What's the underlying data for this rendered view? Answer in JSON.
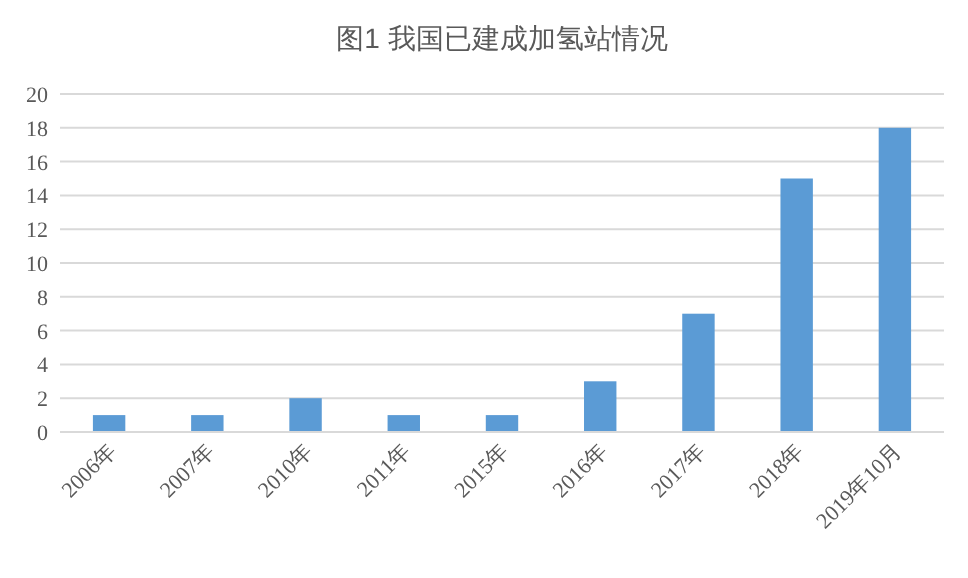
{
  "chart_data": {
    "type": "bar",
    "title": "图1 我国已建成加氢站情况",
    "categories": [
      "2006年",
      "2007年",
      "2010年",
      "2011年",
      "2015年",
      "2016年",
      "2017年",
      "2018年",
      "2019年10月"
    ],
    "values": [
      1,
      1,
      2,
      1,
      1,
      3,
      7,
      15,
      18
    ],
    "color": "#5b9bd5",
    "ylim": [
      0,
      20
    ],
    "yticks": [
      0,
      2,
      4,
      6,
      8,
      10,
      12,
      14,
      16,
      18,
      20
    ],
    "grid": "y"
  }
}
